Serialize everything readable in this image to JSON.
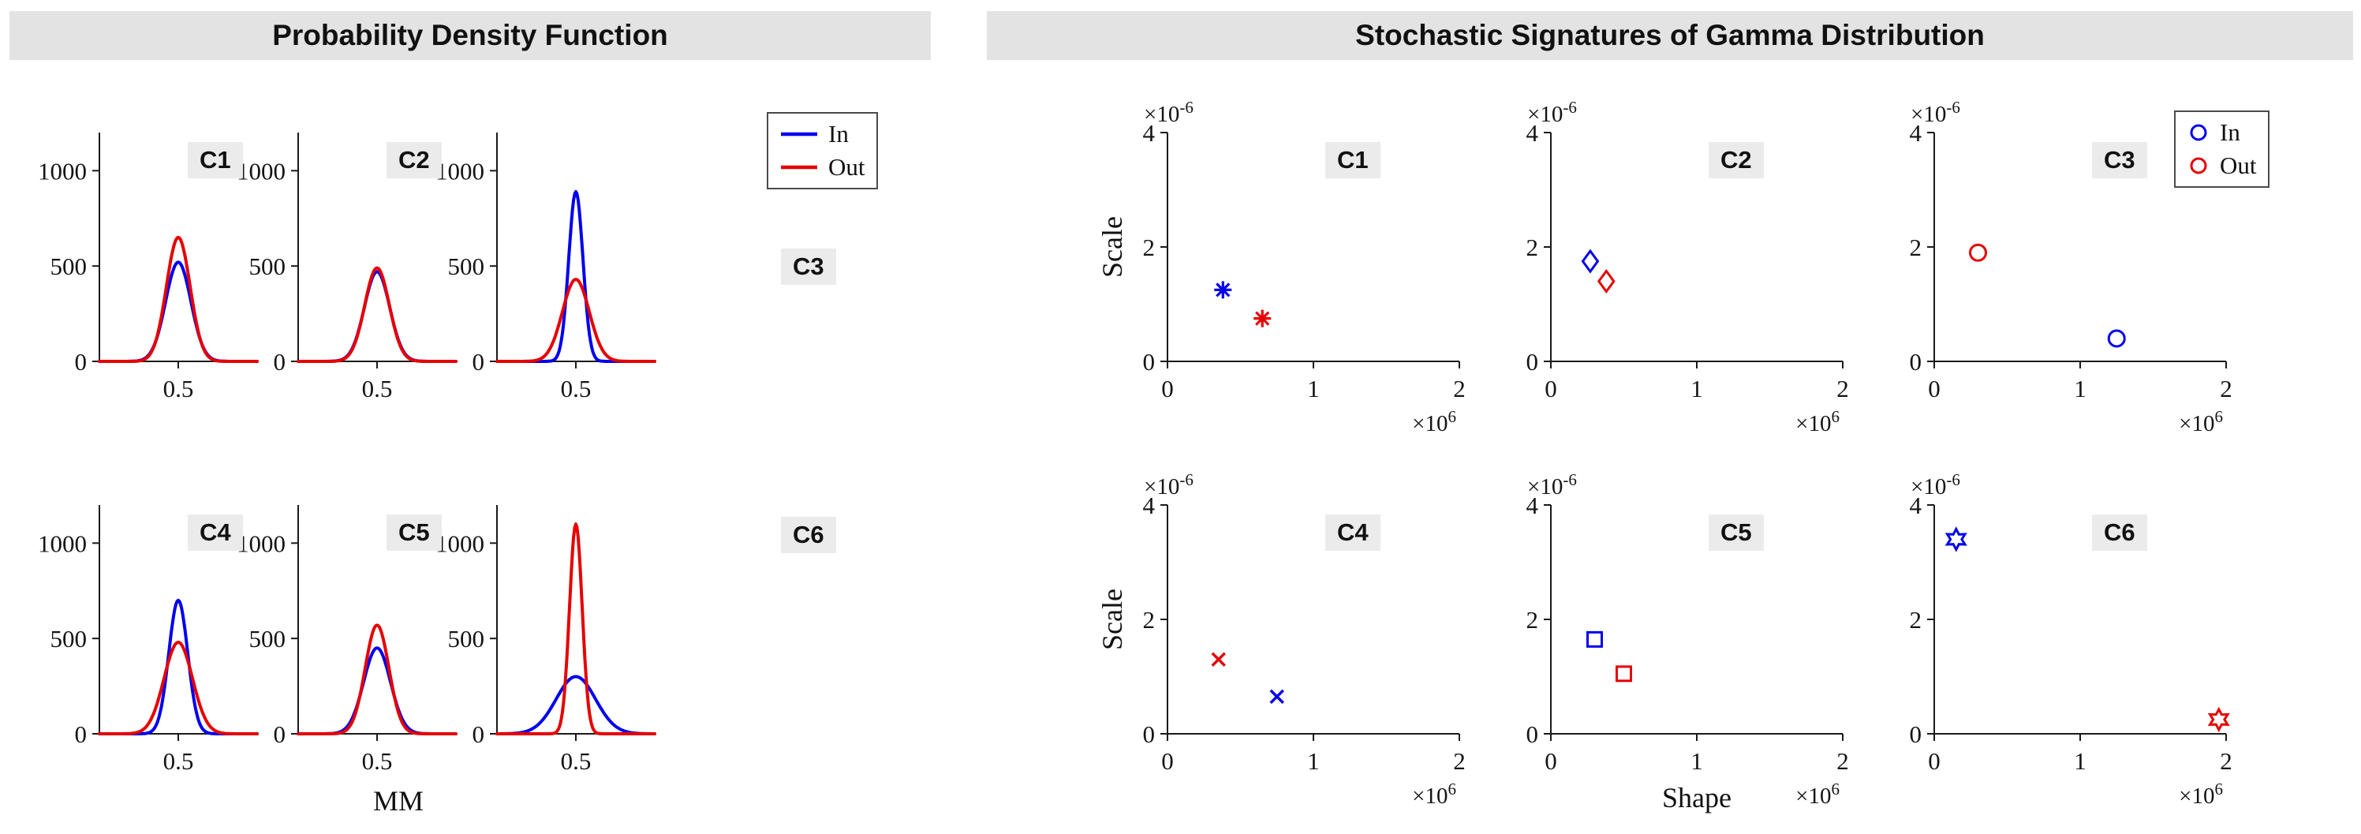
{
  "left_panel": {
    "title": "Probability Density Function",
    "xlabel": "MM"
  },
  "right_panel": {
    "title": "Stochastic Signatures of Gamma Distribution",
    "xlabel": "Shape",
    "ylabel": "Scale"
  },
  "legend": {
    "in_label": "In",
    "out_label": "Out"
  },
  "colors": {
    "in": "#0000EE",
    "out": "#E60000",
    "label_bg": "#EBEBEB",
    "titlebar_bg": "#E3E3E3",
    "axis": "#1A1A1A"
  },
  "chart_data": [
    {
      "panel": "pdf",
      "type": "line",
      "label": "C1",
      "xlim": [
        0.3,
        0.7
      ],
      "ylim": [
        0,
        1200
      ],
      "xticks": [
        0.5
      ],
      "yticks": [
        0,
        500,
        1000
      ],
      "series": [
        {
          "name": "In",
          "color_key": "in",
          "shape": "gaussian",
          "center": 0.5,
          "peak": 520,
          "sigma": 0.032
        },
        {
          "name": "Out",
          "color_key": "out",
          "shape": "gaussian",
          "center": 0.5,
          "peak": 650,
          "sigma": 0.03
        }
      ]
    },
    {
      "panel": "pdf",
      "type": "line",
      "label": "C2",
      "xlim": [
        0.3,
        0.7
      ],
      "ylim": [
        0,
        1200
      ],
      "xticks": [
        0.5
      ],
      "yticks": [
        0,
        500,
        1000
      ],
      "series": [
        {
          "name": "In",
          "color_key": "in",
          "shape": "gaussian",
          "center": 0.5,
          "peak": 470,
          "sigma": 0.032
        },
        {
          "name": "Out",
          "color_key": "out",
          "shape": "gaussian",
          "center": 0.5,
          "peak": 490,
          "sigma": 0.031
        }
      ]
    },
    {
      "panel": "pdf",
      "type": "line",
      "label": "C3",
      "xlim": [
        0.3,
        0.7
      ],
      "ylim": [
        0,
        1200
      ],
      "xticks": [
        0.5
      ],
      "yticks": [
        0,
        500,
        1000
      ],
      "series": [
        {
          "name": "In",
          "color_key": "in",
          "shape": "gaussian",
          "center": 0.5,
          "peak": 890,
          "sigma": 0.018
        },
        {
          "name": "Out",
          "color_key": "out",
          "shape": "gaussian",
          "center": 0.5,
          "peak": 430,
          "sigma": 0.034
        }
      ]
    },
    {
      "panel": "pdf",
      "type": "line",
      "label": "C4",
      "xlim": [
        0.3,
        0.7
      ],
      "ylim": [
        0,
        1200
      ],
      "xticks": [
        0.5
      ],
      "yticks": [
        0,
        500,
        1000
      ],
      "series": [
        {
          "name": "In",
          "color_key": "in",
          "shape": "gaussian",
          "center": 0.5,
          "peak": 700,
          "sigma": 0.024
        },
        {
          "name": "Out",
          "color_key": "out",
          "shape": "gaussian",
          "center": 0.5,
          "peak": 480,
          "sigma": 0.036
        }
      ]
    },
    {
      "panel": "pdf",
      "type": "line",
      "label": "C5",
      "xlim": [
        0.3,
        0.7
      ],
      "ylim": [
        0,
        1200
      ],
      "xticks": [
        0.5
      ],
      "yticks": [
        0,
        500,
        1000
      ],
      "series": [
        {
          "name": "In",
          "color_key": "in",
          "shape": "gaussian",
          "center": 0.5,
          "peak": 450,
          "sigma": 0.034
        },
        {
          "name": "Out",
          "color_key": "out",
          "shape": "gaussian",
          "center": 0.5,
          "peak": 570,
          "sigma": 0.03
        }
      ]
    },
    {
      "panel": "pdf",
      "type": "line",
      "label": "C6",
      "xlim": [
        0.3,
        0.7
      ],
      "ylim": [
        0,
        1200
      ],
      "xticks": [
        0.5
      ],
      "yticks": [
        0,
        500,
        1000
      ],
      "series": [
        {
          "name": "In",
          "color_key": "in",
          "shape": "gaussian",
          "center": 0.5,
          "peak": 300,
          "sigma": 0.05
        },
        {
          "name": "Out",
          "color_key": "out",
          "shape": "gaussian",
          "center": 0.5,
          "peak": 1100,
          "sigma": 0.016
        }
      ]
    },
    {
      "panel": "gamma",
      "type": "scatter",
      "label": "C1",
      "marker": "asterisk",
      "xlim": [
        0,
        2
      ],
      "ylim": [
        0,
        4
      ],
      "xticks": [
        0,
        1,
        2
      ],
      "yticks": [
        0,
        2,
        4
      ],
      "x_unit_label": "×10^6",
      "y_unit_label": "×10^-6",
      "points": [
        {
          "name": "In",
          "color_key": "in",
          "x": 0.38,
          "y": 1.25
        },
        {
          "name": "Out",
          "color_key": "out",
          "x": 0.65,
          "y": 0.75
        }
      ]
    },
    {
      "panel": "gamma",
      "type": "scatter",
      "label": "C2",
      "marker": "diamond",
      "xlim": [
        0,
        2
      ],
      "ylim": [
        0,
        4
      ],
      "xticks": [
        0,
        1,
        2
      ],
      "yticks": [
        0,
        2,
        4
      ],
      "x_unit_label": "×10^6",
      "y_unit_label": "×10^-6",
      "points": [
        {
          "name": "In",
          "color_key": "in",
          "x": 0.27,
          "y": 1.75
        },
        {
          "name": "Out",
          "color_key": "out",
          "x": 0.38,
          "y": 1.4
        }
      ]
    },
    {
      "panel": "gamma",
      "type": "scatter",
      "label": "C3",
      "marker": "circle",
      "xlim": [
        0,
        2
      ],
      "ylim": [
        0,
        4
      ],
      "xticks": [
        0,
        1,
        2
      ],
      "yticks": [
        0,
        2,
        4
      ],
      "x_unit_label": "×10^6",
      "y_unit_label": "×10^-6",
      "points": [
        {
          "name": "In",
          "color_key": "in",
          "x": 1.25,
          "y": 0.4
        },
        {
          "name": "Out",
          "color_key": "out",
          "x": 0.3,
          "y": 1.9
        }
      ]
    },
    {
      "panel": "gamma",
      "type": "scatter",
      "label": "C4",
      "marker": "x",
      "xlim": [
        0,
        2
      ],
      "ylim": [
        0,
        4
      ],
      "xticks": [
        0,
        1,
        2
      ],
      "yticks": [
        0,
        2,
        4
      ],
      "x_unit_label": "×10^6",
      "y_unit_label": "×10^-6",
      "points": [
        {
          "name": "In",
          "color_key": "in",
          "x": 0.75,
          "y": 0.65
        },
        {
          "name": "Out",
          "color_key": "out",
          "x": 0.35,
          "y": 1.3
        }
      ]
    },
    {
      "panel": "gamma",
      "type": "scatter",
      "label": "C5",
      "marker": "square",
      "xlim": [
        0,
        2
      ],
      "ylim": [
        0,
        4
      ],
      "xticks": [
        0,
        1,
        2
      ],
      "yticks": [
        0,
        2,
        4
      ],
      "x_unit_label": "×10^6",
      "y_unit_label": "×10^-6",
      "points": [
        {
          "name": "In",
          "color_key": "in",
          "x": 0.3,
          "y": 1.65
        },
        {
          "name": "Out",
          "color_key": "out",
          "x": 0.5,
          "y": 1.05
        }
      ]
    },
    {
      "panel": "gamma",
      "type": "scatter",
      "label": "C6",
      "marker": "hexagram",
      "xlim": [
        0,
        2
      ],
      "ylim": [
        0,
        4
      ],
      "xticks": [
        0,
        1,
        2
      ],
      "yticks": [
        0,
        2,
        4
      ],
      "x_unit_label": "×10^6",
      "y_unit_label": "×10^-6",
      "points": [
        {
          "name": "In",
          "color_key": "in",
          "x": 0.15,
          "y": 3.4
        },
        {
          "name": "Out",
          "color_key": "out",
          "x": 1.95,
          "y": 0.25
        }
      ]
    }
  ]
}
